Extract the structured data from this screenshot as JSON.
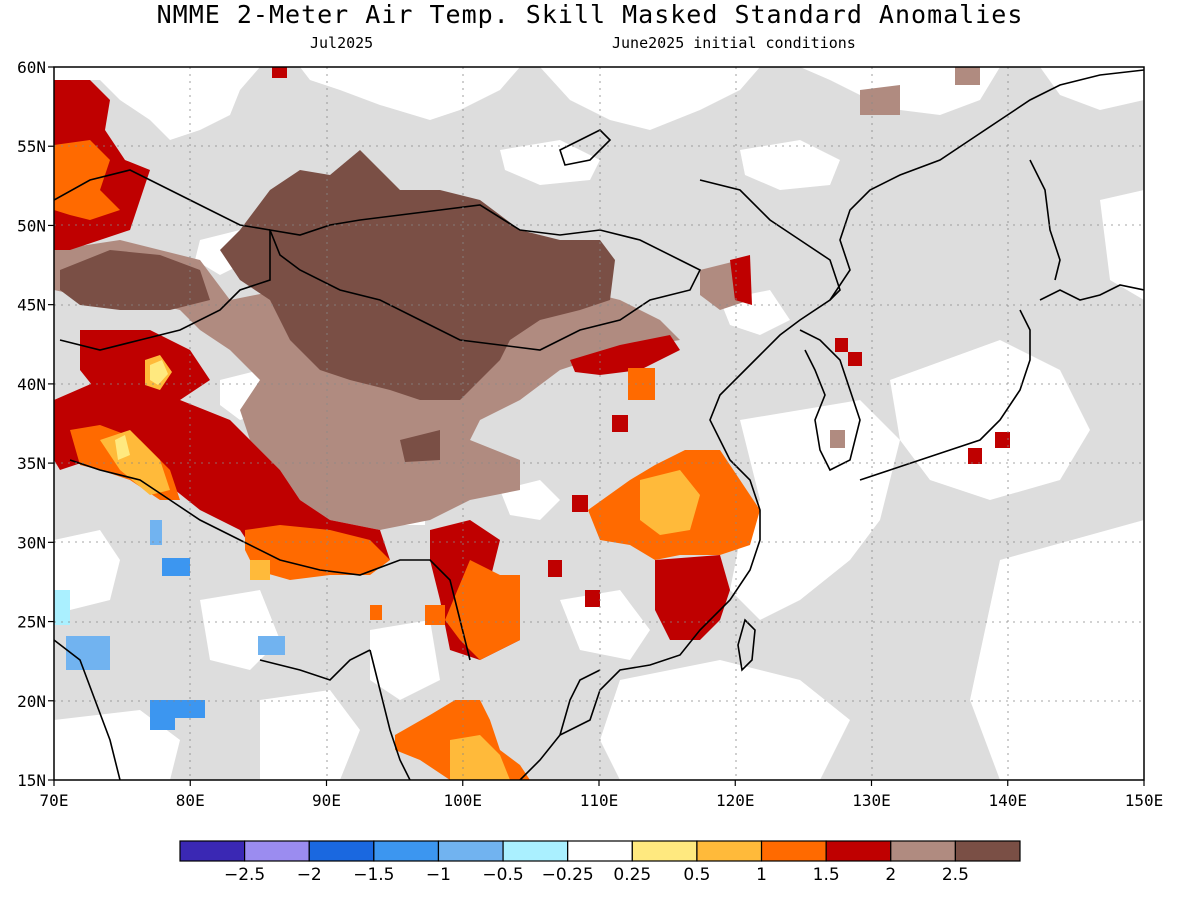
{
  "header": {
    "title": "NMME 2-Meter Air Temp. Skill Masked Standard Anomalies",
    "subtitle_left": "Jul2025",
    "subtitle_right": "June2025 initial conditions"
  },
  "map": {
    "lon_range": [
      70,
      150
    ],
    "lat_range": [
      15,
      60
    ],
    "lon_ticks": [
      "70E",
      "80E",
      "90E",
      "100E",
      "110E",
      "120E",
      "130E",
      "140E",
      "150E"
    ],
    "lat_ticks": [
      "15N",
      "20N",
      "25N",
      "30N",
      "35N",
      "40N",
      "45N",
      "50N",
      "55N",
      "60N"
    ],
    "gridlines": "dotted",
    "colors": {
      "masked": "#dddddd",
      "neutral": "#ffffff",
      "p025": "#ffe97f",
      "p05": "#ffba3a",
      "p1": "#ff6a00",
      "p15": "#bf0000",
      "p2": "#b08b80",
      "p25": "#7a4f45",
      "n025": "#aaf0ff",
      "n05": "#71b3f0",
      "n1": "#3c96f0",
      "n15": "#1a68e0"
    },
    "regions": [
      {
        "name": "mongolia-core",
        "category": "p25"
      },
      {
        "name": "tarim-highlands",
        "category": "p2"
      },
      {
        "name": "tibet-west",
        "category": "p15"
      },
      {
        "name": "east-china-warm",
        "category": "p1"
      },
      {
        "name": "south-china",
        "category": "p15"
      },
      {
        "name": "indochina",
        "category": "p05"
      },
      {
        "name": "west-india-cool",
        "category": "n05"
      }
    ]
  },
  "legend": {
    "colors": [
      "#3a28b4",
      "#9b8cf0",
      "#1a68e0",
      "#3c96f0",
      "#71b3f0",
      "#aaf0ff",
      "#ffffff",
      "#ffe97f",
      "#ffba3a",
      "#ff6a00",
      "#bf0000",
      "#b08b80",
      "#7a4f45"
    ],
    "labels": [
      "-2.5",
      "-2",
      "-1.5",
      "-1",
      "-0.5",
      "-0.25",
      "0.25",
      "0.5",
      "1",
      "1.5",
      "2",
      "2.5"
    ]
  }
}
